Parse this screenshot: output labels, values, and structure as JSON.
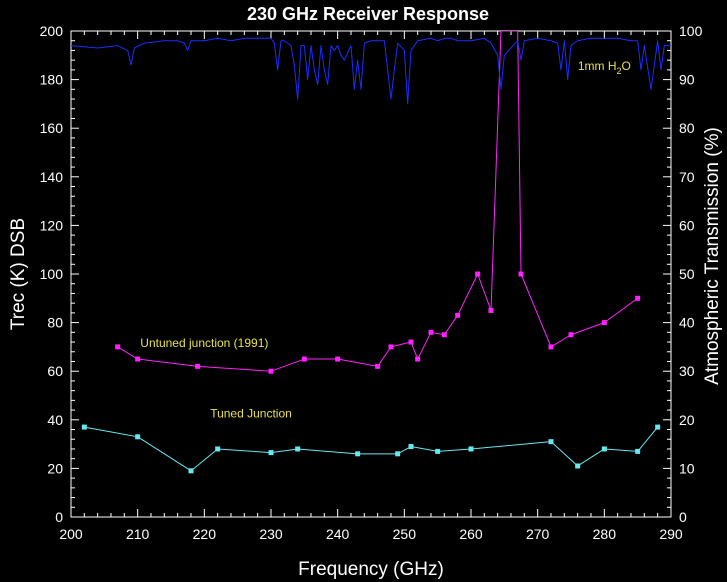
{
  "chart_data": {
    "type": "line",
    "title": "230 GHz Receiver Response",
    "xlabel": "Frequency (GHz)",
    "ylabel": "Trec (K)  DSB",
    "y2label": "Atmospheric Transmission (%)",
    "xlim": [
      200,
      290
    ],
    "ylim": [
      0,
      200
    ],
    "y2lim": [
      0,
      100
    ],
    "x_ticks": [
      200,
      210,
      220,
      230,
      240,
      250,
      260,
      270,
      280,
      290
    ],
    "y_ticks": [
      0,
      20,
      40,
      60,
      80,
      100,
      120,
      140,
      160,
      180,
      200
    ],
    "y2_ticks": [
      0,
      10,
      20,
      30,
      40,
      50,
      60,
      70,
      80,
      90,
      100
    ],
    "colors": {
      "background": "#000000",
      "frame": "#ffffff",
      "untuned": "#ff22ff",
      "tuned": "#66e8ee",
      "transmission": "#1a2dff",
      "annotation": "#e7e04a"
    },
    "series": [
      {
        "name": "Untuned junction (1991)",
        "axis": "left",
        "markers": true,
        "x": [
          207,
          210,
          219,
          230,
          235,
          240,
          246,
          248,
          251,
          252,
          254,
          256,
          258,
          261,
          263,
          264.5,
          267,
          267.5,
          272,
          275,
          280,
          285
        ],
        "y": [
          70,
          65,
          62,
          60,
          65,
          65,
          62,
          70,
          72,
          65,
          76,
          75,
          83,
          100,
          85,
          200,
          200,
          100,
          70,
          75,
          80,
          90
        ]
      },
      {
        "name": "Tuned Junction",
        "axis": "left",
        "markers": true,
        "x": [
          202,
          210,
          218,
          222,
          230,
          234,
          243,
          249,
          251,
          255,
          260,
          272,
          276,
          280,
          285,
          288
        ],
        "y": [
          37,
          33,
          19,
          28,
          26.5,
          28,
          26,
          26,
          29,
          27,
          28,
          31,
          21,
          28,
          27,
          37
        ]
      },
      {
        "name": "1mm H2O",
        "axis": "right",
        "markers": false,
        "x": [
          200,
          204,
          207,
          208.5,
          209,
          209.5,
          211,
          214,
          216,
          217,
          217.5,
          218,
          220,
          222,
          224,
          226,
          230,
          230.5,
          231,
          231.5,
          232,
          233,
          233.5,
          234,
          234.5,
          235,
          235.5,
          236,
          236.5,
          237,
          237.5,
          238,
          238.5,
          239,
          239.5,
          240,
          240.5,
          241,
          242,
          242.5,
          243,
          243.5,
          244,
          245,
          247,
          247.5,
          248,
          248.5,
          249,
          250,
          250.5,
          251,
          252,
          254,
          255,
          256,
          257,
          258,
          260,
          262,
          263,
          264,
          264.5,
          265,
          267,
          267.5,
          268,
          270,
          272,
          273,
          273.5,
          274,
          274.5,
          275,
          276,
          278,
          280,
          282,
          284,
          285,
          285.5,
          286,
          287,
          288,
          288.5,
          289,
          289.5,
          290
        ],
        "y": [
          97,
          96.5,
          97,
          96,
          93,
          96.5,
          97.5,
          98,
          98,
          97.5,
          96,
          98,
          98,
          98.5,
          98,
          98.5,
          98.5,
          97.5,
          92,
          98,
          98,
          97,
          93,
          86,
          97,
          97,
          90,
          97,
          92,
          89,
          97,
          92,
          89,
          97,
          96,
          97,
          95,
          94,
          97,
          88,
          94,
          88,
          97.5,
          98,
          98,
          92,
          86,
          92,
          97.5,
          96,
          85,
          96,
          98,
          98.5,
          98,
          98.5,
          98.5,
          98,
          98,
          98.5,
          97.5,
          95,
          88,
          95,
          98,
          94,
          98,
          98.5,
          98,
          97.5,
          92,
          98,
          90,
          97,
          98,
          98.5,
          98.5,
          98.5,
          98,
          98,
          92,
          97,
          88,
          98,
          92,
          97,
          97,
          97
        ]
      }
    ],
    "annotations": [
      {
        "text": "Untuned junction (1991)",
        "x": 220,
        "y": 70,
        "axis": "left"
      },
      {
        "text": "Tuned Junction",
        "x": 227,
        "y": 41,
        "axis": "left"
      },
      {
        "text": "1mm H",
        "sub": "2",
        "tail": "O",
        "x": 280,
        "y": 92,
        "axis": "right"
      }
    ]
  }
}
